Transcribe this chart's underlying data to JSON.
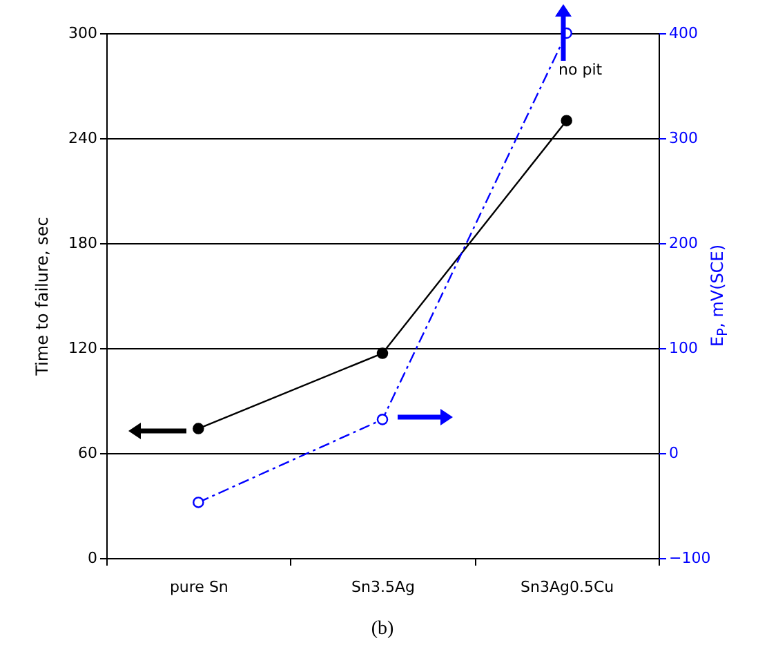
{
  "chart_data": {
    "type": "line",
    "categories": [
      "pure Sn",
      "Sn3.5Ag",
      "Sn3Ag0.5Cu"
    ],
    "series": [
      {
        "color": "#000000",
        "values": [
          74,
          117,
          250
        ],
        "line_style": "solid"
      },
      {
        "color": "#0000ff",
        "values": [
          -47,
          32,
          400
        ],
        "axis": "y2",
        "line_style": "dashed"
      }
    ],
    "ylabel": "Time to failure, sec",
    "y2label": "E$_{P}$, mV(SCE)",
    "ylim": [
      0,
      300
    ],
    "yticks": [
      0,
      60,
      120,
      180,
      240,
      300
    ],
    "y2lim": [
      -100,
      400
    ],
    "y2ticks": [
      -100,
      0,
      100,
      200,
      300,
      400
    ],
    "grid": "y",
    "marker": "circle",
    "annotations": [
      "no pit",
      "(b)"
    ]
  }
}
